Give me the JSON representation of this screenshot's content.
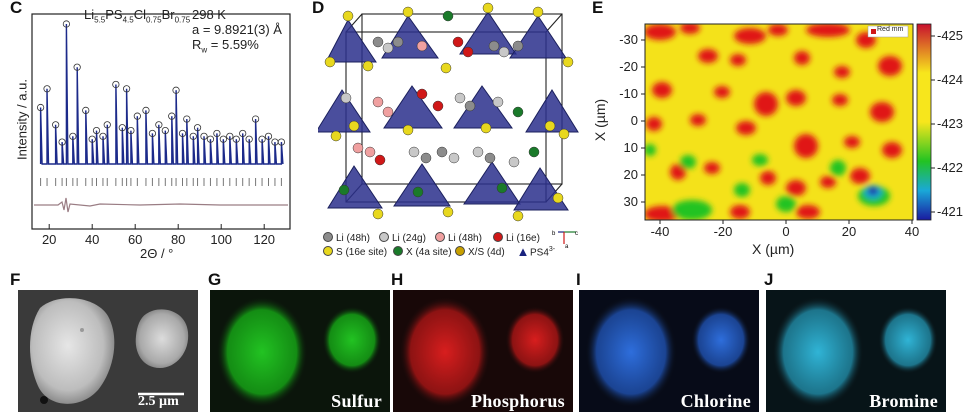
{
  "panels": {
    "C": {
      "label": "C",
      "formula": "Li5.5PS4.5Cl0.75Br0.75",
      "formula_parts": {
        "li": "Li",
        "li_sub": "5.5",
        "ps": "PS",
        "ps_sub": "4.5",
        "cl": "Cl",
        "cl_sub": "0.75",
        "br": "Br",
        "br_sub": "0.75"
      },
      "temperature": "298 K",
      "lattice": "a = 9.8921(3) Å",
      "rw_prefix": "R",
      "rw_sub": "w",
      "rw_value": " = 5.59%",
      "ylabel": "Intensity / a.u.",
      "xlabel": "2Θ / °",
      "xticks": [
        "20",
        "40",
        "60",
        "80",
        "100",
        "120"
      ]
    },
    "D": {
      "label": "D",
      "legend": [
        {
          "text": "Li (48h)",
          "color": "#8c8c8c"
        },
        {
          "text": "Li (24g)",
          "color": "#c8c8c8"
        },
        {
          "text": "Li (48h)",
          "color": "#f0a0a0"
        },
        {
          "text": "Li (16e)",
          "color": "#d01818"
        },
        {
          "text": "S (16e site)",
          "color": "#e8d81e"
        },
        {
          "text": "X (4a site)",
          "color": "#1a7a2a"
        },
        {
          "text": "X/S (4d)",
          "color": "#c8a000"
        },
        {
          "text": "PS4",
          "color": "#1a237e"
        }
      ],
      "ps4_sup": "3-",
      "axes_labels": {
        "b": "b",
        "c": "c",
        "a": "a"
      }
    },
    "E": {
      "label": "E",
      "legend_text": "Red mm",
      "xlabel": "X (µm)",
      "ylabel": "X (µm)",
      "xticks": [
        "-40",
        "-20",
        "0",
        "20",
        "40"
      ],
      "yticks": [
        "-30",
        "-20",
        "-10",
        "0",
        "10",
        "20",
        "30"
      ],
      "colorbar_ticks": [
        "-425",
        "-424",
        "-423",
        "-422",
        "-421"
      ]
    },
    "F": {
      "label": "F",
      "scale_bar": "2.5 µm"
    },
    "G": {
      "label": "G",
      "element": "Sulfur",
      "color": "#22c322"
    },
    "H": {
      "label": "H",
      "element": "Phosphorus",
      "color": "#c81e1e"
    },
    "I": {
      "label": "I",
      "element": "Chlorine",
      "color": "#2e6edc"
    },
    "J": {
      "label": "J",
      "element": "Bromine",
      "color": "#30b4d6"
    }
  },
  "chart_data": [
    {
      "type": "line",
      "title": "",
      "xlabel": "2Θ / °",
      "ylabel": "Intensity / a.u.",
      "xlim": [
        12,
        132
      ],
      "xticks": [
        20,
        40,
        60,
        80,
        100,
        120
      ],
      "series": [
        {
          "name": "",
          "x": [
            16,
            19,
            23,
            26,
            28,
            31,
            33,
            37,
            40,
            42,
            45,
            47,
            51,
            54,
            56,
            58,
            61,
            65,
            68,
            71,
            74,
            77,
            79,
            82,
            84,
            87,
            89,
            92,
            95,
            98,
            101,
            104,
            107,
            110,
            113,
            116,
            119,
            122,
            125,
            128
          ],
          "y": [
            42,
            55,
            30,
            18,
            100,
            22,
            70,
            40,
            20,
            26,
            22,
            30,
            58,
            28,
            55,
            26,
            36,
            40,
            24,
            30,
            26,
            36,
            54,
            24,
            34,
            22,
            28,
            22,
            20,
            24,
            20,
            22,
            20,
            24,
            20,
            34,
            20,
            22,
            18,
            18
          ]
        }
      ]
    }
  ]
}
